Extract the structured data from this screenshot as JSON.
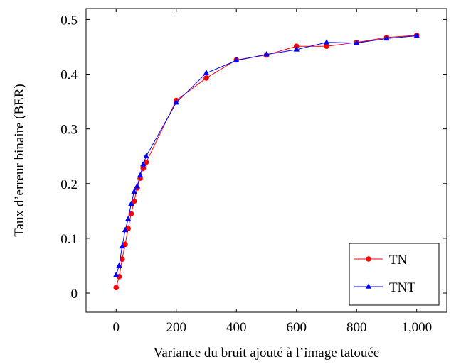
{
  "chart_data": {
    "type": "line",
    "title": "",
    "xlabel": "Variance du bruit ajouté à l’image tatouée",
    "ylabel": "Taux d’erreur binaire (BER)",
    "xlim": [
      -100,
      1100
    ],
    "ylim": [
      -0.035,
      0.52
    ],
    "xticks": [
      0,
      200,
      400,
      600,
      800,
      1000
    ],
    "xtick_labels": [
      "0",
      "200",
      "400",
      "600",
      "800",
      "1,000"
    ],
    "yticks": [
      0,
      0.1,
      0.2,
      0.3,
      0.4,
      0.5
    ],
    "ytick_labels": [
      "0",
      "0.1",
      "0.2",
      "0.3",
      "0.4",
      "0.5"
    ],
    "grid": false,
    "legend_position": "bottom-right",
    "series": [
      {
        "name": "TN",
        "color": "#ff0000",
        "marker": "circle",
        "x": [
          0,
          10,
          20,
          30,
          40,
          50,
          60,
          70,
          80,
          90,
          100,
          200,
          300,
          400,
          500,
          600,
          700,
          800,
          900,
          1000
        ],
        "y": [
          0.01,
          0.03,
          0.062,
          0.089,
          0.118,
          0.145,
          0.168,
          0.192,
          0.21,
          0.228,
          0.239,
          0.352,
          0.393,
          0.426,
          0.435,
          0.451,
          0.451,
          0.458,
          0.467,
          0.471
        ]
      },
      {
        "name": "TNT",
        "color": "#0000ff",
        "marker": "triangle",
        "x": [
          0,
          10,
          20,
          30,
          40,
          50,
          60,
          70,
          80,
          90,
          100,
          200,
          300,
          400,
          500,
          600,
          700,
          800,
          900,
          1000
        ],
        "y": [
          0.033,
          0.05,
          0.085,
          0.115,
          0.135,
          0.163,
          0.185,
          0.195,
          0.215,
          0.235,
          0.25,
          0.348,
          0.402,
          0.425,
          0.436,
          0.445,
          0.458,
          0.457,
          0.465,
          0.47
        ]
      }
    ]
  }
}
